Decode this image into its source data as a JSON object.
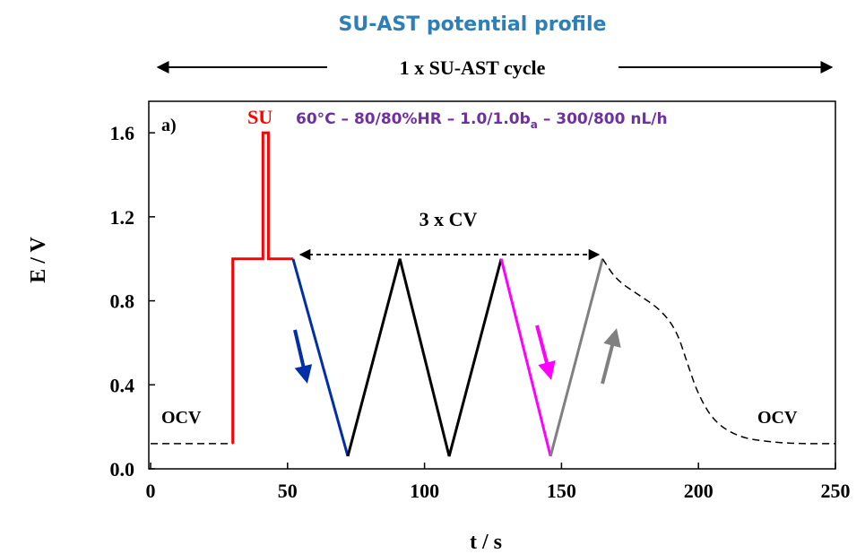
{
  "header": {
    "title": "SU-AST potential profile",
    "cycle_label": "1 x SU-AST cycle"
  },
  "chart_data": {
    "type": "line",
    "panel_label": "a)",
    "xlabel": "t / s",
    "ylabel": "E / V",
    "xlim": [
      0,
      250
    ],
    "ylim": [
      0,
      1.75
    ],
    "xticks": [
      0,
      50,
      100,
      150,
      200,
      250
    ],
    "yticks": [
      0.0,
      0.4,
      0.8,
      1.2,
      1.6
    ],
    "xtick_labels": [
      "0",
      "50",
      "100",
      "150",
      "200",
      "250"
    ],
    "ytick_labels": [
      "0.0",
      "0.4",
      "0.8",
      "1.2",
      "1.6"
    ],
    "grid": false,
    "series": [
      {
        "name": "OCV",
        "segment": "ocv-start",
        "color": "#000000",
        "dashed": true,
        "x": [
          0,
          30
        ],
        "y": [
          0.12,
          0.12
        ]
      },
      {
        "name": "SU",
        "segment": "su",
        "color": "#ff0000",
        "dashed": false,
        "x": [
          30,
          30,
          41,
          41,
          43,
          43,
          52
        ],
        "y": [
          0.12,
          1.0,
          1.0,
          1.6,
          1.6,
          1.0,
          1.0
        ]
      },
      {
        "segment": "cv1-down",
        "color": "#002fa7",
        "dashed": false,
        "x": [
          52,
          72
        ],
        "y": [
          1.0,
          0.06
        ]
      },
      {
        "segment": "cv-middle",
        "color": "#000000",
        "dashed": false,
        "x": [
          72,
          91,
          109,
          128
        ],
        "y": [
          0.06,
          1.0,
          0.06,
          1.0
        ]
      },
      {
        "segment": "cv3-down",
        "color": "#ff00ff",
        "dashed": false,
        "x": [
          128,
          146
        ],
        "y": [
          1.0,
          0.06
        ]
      },
      {
        "segment": "cv3-up",
        "color": "#808080",
        "dashed": false,
        "x": [
          146,
          165
        ],
        "y": [
          0.06,
          1.0
        ]
      },
      {
        "segment": "ocv-end",
        "color": "#000000",
        "dashed": true,
        "x": [
          165,
          170,
          178,
          186,
          192,
          196,
          200,
          206,
          215,
          225,
          235,
          250
        ],
        "y": [
          1.0,
          0.9,
          0.83,
          0.76,
          0.66,
          0.5,
          0.35,
          0.22,
          0.15,
          0.13,
          0.12,
          0.12
        ]
      }
    ],
    "annotations": {
      "su_label": "SU",
      "conditions": "60°C – 80/80%HR – 1.0/1.0b",
      "conditions_sub": "a",
      "conditions_tail": " – 300/800 nL/h",
      "cv_label": "3 x CV",
      "ocv_left": "OCV",
      "ocv_right": "OCV"
    },
    "colors": {
      "su": "#ff0000",
      "down_arrow_1": "#002fa7",
      "down_arrow_3": "#ff00ff",
      "up_arrow": "#808080",
      "title": "#2e7fb8",
      "conditions": "#7030a0"
    }
  }
}
